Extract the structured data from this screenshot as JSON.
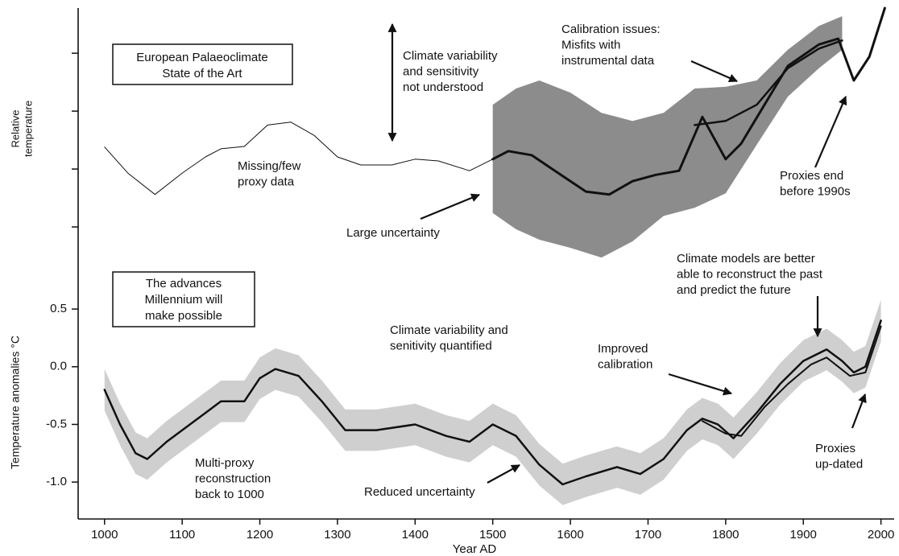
{
  "chart_data": [
    {
      "type": "line",
      "ylabel": [
        "Relative",
        "temperature"
      ],
      "xlim": [
        966,
        2017
      ],
      "ylim": [
        0,
        4.78
      ],
      "yticks": [
        1,
        2,
        3,
        4
      ],
      "band": {
        "color": "#8c8c8c",
        "x": [
          1500,
          1530,
          1560,
          1600,
          1640,
          1680,
          1720,
          1760,
          1800,
          1840,
          1880,
          1920,
          1950
        ],
        "lower": [
          1.24,
          0.96,
          0.78,
          0.64,
          0.47,
          0.75,
          1.19,
          1.33,
          1.58,
          2.42,
          3.25,
          3.74,
          4.06
        ],
        "upper": [
          3.11,
          3.39,
          3.53,
          3.32,
          2.97,
          2.83,
          2.97,
          3.39,
          3.42,
          3.53,
          4.06,
          4.47,
          4.64
        ]
      },
      "series": [
        {
          "color": "#111",
          "width": 1,
          "x": [
            1000,
            1030,
            1065,
            1100,
            1130,
            1150,
            1180,
            1210,
            1240,
            1270,
            1300,
            1330,
            1370,
            1400,
            1430,
            1470,
            1500
          ],
          "values": [
            2.38,
            1.93,
            1.56,
            1.93,
            2.21,
            2.35,
            2.39,
            2.76,
            2.81,
            2.58,
            2.21,
            2.07,
            2.07,
            2.17,
            2.14,
            1.97,
            2.17
          ]
        },
        {
          "color": "#111",
          "width": 3,
          "x": [
            1500,
            1520,
            1550,
            1580,
            1620,
            1650,
            1680,
            1710,
            1740,
            1770,
            1800,
            1820,
            1850,
            1880,
            1920,
            1945,
            1965,
            1985,
            2005
          ],
          "values": [
            2.17,
            2.31,
            2.24,
            1.97,
            1.61,
            1.56,
            1.79,
            1.9,
            1.97,
            2.9,
            2.17,
            2.44,
            3.11,
            3.78,
            4.15,
            4.25,
            3.53,
            3.94,
            4.78
          ]
        },
        {
          "color": "#111",
          "width": 2.5,
          "x": [
            1760,
            1800,
            1840,
            1880,
            1920,
            1950
          ],
          "values": [
            2.76,
            2.83,
            3.11,
            3.74,
            4.08,
            4.22
          ]
        }
      ],
      "annotations": [
        {
          "boxed": true,
          "lines": [
            "European Palaeoclimate",
            "State of the Art"
          ]
        },
        {
          "lines": [
            "Climate variability",
            "and sensitivity",
            "not understood"
          ]
        },
        {
          "lines": [
            "Missing/few",
            "proxy data"
          ]
        },
        {
          "lines": [
            "Large uncertainty"
          ]
        },
        {
          "lines": [
            "Calibration issues:",
            "Misfits with",
            "instrumental data"
          ]
        },
        {
          "lines": [
            "Proxies end",
            "before 1990s"
          ]
        }
      ]
    },
    {
      "type": "line",
      "ylabel": "Temperature anomalies °C",
      "xlabel": "Year AD",
      "xlim": [
        966,
        2017
      ],
      "ylim": [
        -1.32,
        0.71
      ],
      "yticks": [
        0.5,
        {
          "value": 0,
          "label": "0.0"
        },
        -0.5,
        {
          "value": -1,
          "label": "-1.0"
        }
      ],
      "xticks": [
        1000,
        1100,
        1200,
        1300,
        1400,
        1500,
        1600,
        1700,
        1800,
        1900,
        2000
      ],
      "band": {
        "color": "#cfcfcf",
        "x": [
          1000,
          1020,
          1040,
          1055,
          1080,
          1100,
          1130,
          1150,
          1180,
          1200,
          1220,
          1250,
          1280,
          1310,
          1350,
          1400,
          1440,
          1470,
          1500,
          1530,
          1560,
          1590,
          1620,
          1660,
          1690,
          1720,
          1750,
          1770,
          1790,
          1810,
          1840,
          1870,
          1900,
          1930,
          1950,
          1965,
          1980,
          2000
        ],
        "lower": [
          -0.38,
          -0.68,
          -0.93,
          -0.98,
          -0.83,
          -0.73,
          -0.58,
          -0.48,
          -0.48,
          -0.28,
          -0.2,
          -0.26,
          -0.48,
          -0.73,
          -0.73,
          -0.68,
          -0.78,
          -0.83,
          -0.68,
          -0.78,
          -1.03,
          -1.2,
          -1.13,
          -1.05,
          -1.11,
          -0.98,
          -0.73,
          -0.63,
          -0.68,
          -0.8,
          -0.58,
          -0.33,
          -0.13,
          -0.03,
          -0.13,
          -0.23,
          -0.18,
          0.22
        ],
        "upper": [
          -0.02,
          -0.32,
          -0.57,
          -0.62,
          -0.47,
          -0.37,
          -0.22,
          -0.12,
          -0.12,
          0.08,
          0.16,
          0.1,
          -0.12,
          -0.37,
          -0.37,
          -0.32,
          -0.42,
          -0.47,
          -0.32,
          -0.42,
          -0.67,
          -0.84,
          -0.77,
          -0.69,
          -0.75,
          -0.62,
          -0.37,
          -0.27,
          -0.32,
          -0.44,
          -0.22,
          0.03,
          0.23,
          0.33,
          0.23,
          0.13,
          0.18,
          0.58
        ]
      },
      "series": [
        {
          "color": "#111",
          "width": 2.5,
          "x": [
            1000,
            1020,
            1040,
            1055,
            1080,
            1100,
            1130,
            1150,
            1180,
            1200,
            1220,
            1250,
            1280,
            1310,
            1350,
            1400,
            1440,
            1470,
            1500,
            1530,
            1560,
            1590,
            1620,
            1660,
            1690,
            1720,
            1750,
            1770,
            1790,
            1810,
            1840,
            1870,
            1900,
            1930,
            1950,
            1965,
            1980,
            2000
          ],
          "values": [
            -0.2,
            -0.5,
            -0.75,
            -0.8,
            -0.65,
            -0.55,
            -0.4,
            -0.3,
            -0.3,
            -0.1,
            -0.02,
            -0.08,
            -0.3,
            -0.55,
            -0.55,
            -0.5,
            -0.6,
            -0.65,
            -0.5,
            -0.6,
            -0.85,
            -1.02,
            -0.95,
            -0.87,
            -0.93,
            -0.8,
            -0.55,
            -0.45,
            -0.5,
            -0.62,
            -0.4,
            -0.15,
            0.05,
            0.15,
            0.05,
            -0.05,
            0,
            0.4
          ]
        },
        {
          "color": "#111",
          "width": 2,
          "x": [
            1770,
            1800,
            1820,
            1850,
            1880,
            1910,
            1930,
            1960,
            1980,
            2000
          ],
          "values": [
            -0.47,
            -0.58,
            -0.6,
            -0.35,
            -0.15,
            0.02,
            0.08,
            -0.08,
            -0.05,
            0.35
          ]
        }
      ],
      "annotations": [
        {
          "boxed": true,
          "lines": [
            "The advances",
            "Millennium will",
            "make possible"
          ]
        },
        {
          "lines": [
            "Climate variability and",
            "senitivity quantified"
          ]
        },
        {
          "lines": [
            "Improved",
            "calibration"
          ]
        },
        {
          "lines": [
            "Climate models are better",
            "able to reconstruct the past",
            "and predict the future"
          ]
        },
        {
          "lines": [
            "Multi-proxy",
            "reconstruction",
            "back to 1000"
          ]
        },
        {
          "lines": [
            "Reduced uncertainty"
          ]
        },
        {
          "lines": [
            "Proxies",
            "up-dated"
          ]
        }
      ]
    }
  ]
}
